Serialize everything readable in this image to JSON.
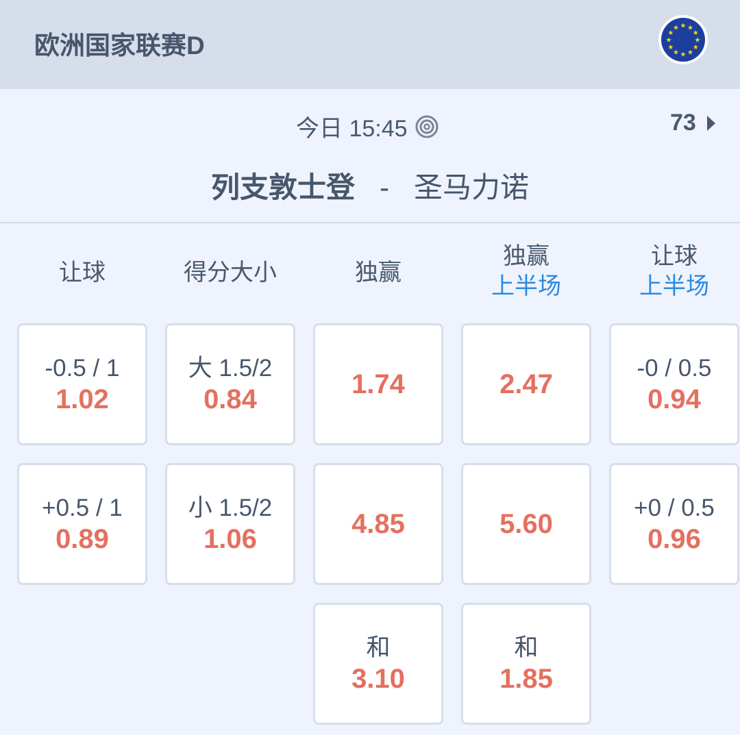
{
  "header": {
    "league": "欧洲国家联赛D",
    "flag_icon": "eu-flag"
  },
  "match": {
    "time": "今日 15:45",
    "more_count": "73",
    "home": "列支敦士登",
    "separator": "-",
    "away": "圣马力诺"
  },
  "colors": {
    "odds": "#e4705f",
    "accent": "#2a8ae0",
    "header_bg": "#d6deec",
    "body_bg": "#eef3fd"
  },
  "columns": [
    {
      "title": "让球",
      "sub": ""
    },
    {
      "title": "得分大小",
      "sub": ""
    },
    {
      "title": "独赢",
      "sub": ""
    },
    {
      "title": "独赢",
      "sub": "上半场"
    },
    {
      "title": "让球",
      "sub": "上半场"
    }
  ],
  "rows": [
    [
      {
        "line": "-0.5 / 1",
        "odds": "1.02"
      },
      {
        "line": "大 1.5/2",
        "odds": "0.84"
      },
      {
        "line": "",
        "odds": "1.74"
      },
      {
        "line": "",
        "odds": "2.47"
      },
      {
        "line": "-0 / 0.5",
        "odds": "0.94"
      }
    ],
    [
      {
        "line": "+0.5 / 1",
        "odds": "0.89"
      },
      {
        "line": "小 1.5/2",
        "odds": "1.06"
      },
      {
        "line": "",
        "odds": "4.85"
      },
      {
        "line": "",
        "odds": "5.60"
      },
      {
        "line": "+0 / 0.5",
        "odds": "0.96"
      }
    ],
    [
      null,
      null,
      {
        "line": "和",
        "odds": "3.10"
      },
      {
        "line": "和",
        "odds": "1.85"
      },
      null
    ]
  ]
}
